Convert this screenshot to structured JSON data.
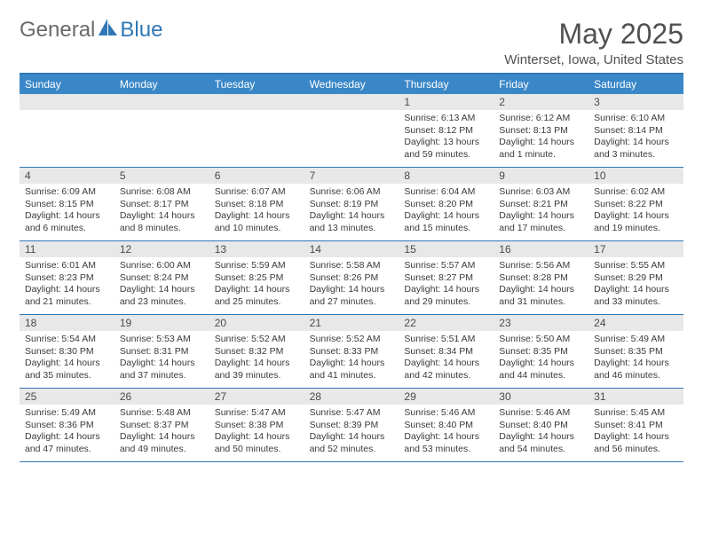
{
  "brand": {
    "part1": "General",
    "part2": "Blue"
  },
  "title": "May 2025",
  "location": "Winterset, Iowa, United States",
  "colors": {
    "header_bg": "#3a87c8",
    "rule": "#2f77b6",
    "daynum_bg": "#e8e8e8",
    "text": "#3a3a3a",
    "title_text": "#505050"
  },
  "weekdays": [
    "Sunday",
    "Monday",
    "Tuesday",
    "Wednesday",
    "Thursday",
    "Friday",
    "Saturday"
  ],
  "weeks": [
    [
      {
        "n": "",
        "sr": "",
        "ss": "",
        "dl": ""
      },
      {
        "n": "",
        "sr": "",
        "ss": "",
        "dl": ""
      },
      {
        "n": "",
        "sr": "",
        "ss": "",
        "dl": ""
      },
      {
        "n": "",
        "sr": "",
        "ss": "",
        "dl": ""
      },
      {
        "n": "1",
        "sr": "Sunrise: 6:13 AM",
        "ss": "Sunset: 8:12 PM",
        "dl": "Daylight: 13 hours and 59 minutes."
      },
      {
        "n": "2",
        "sr": "Sunrise: 6:12 AM",
        "ss": "Sunset: 8:13 PM",
        "dl": "Daylight: 14 hours and 1 minute."
      },
      {
        "n": "3",
        "sr": "Sunrise: 6:10 AM",
        "ss": "Sunset: 8:14 PM",
        "dl": "Daylight: 14 hours and 3 minutes."
      }
    ],
    [
      {
        "n": "4",
        "sr": "Sunrise: 6:09 AM",
        "ss": "Sunset: 8:15 PM",
        "dl": "Daylight: 14 hours and 6 minutes."
      },
      {
        "n": "5",
        "sr": "Sunrise: 6:08 AM",
        "ss": "Sunset: 8:17 PM",
        "dl": "Daylight: 14 hours and 8 minutes."
      },
      {
        "n": "6",
        "sr": "Sunrise: 6:07 AM",
        "ss": "Sunset: 8:18 PM",
        "dl": "Daylight: 14 hours and 10 minutes."
      },
      {
        "n": "7",
        "sr": "Sunrise: 6:06 AM",
        "ss": "Sunset: 8:19 PM",
        "dl": "Daylight: 14 hours and 13 minutes."
      },
      {
        "n": "8",
        "sr": "Sunrise: 6:04 AM",
        "ss": "Sunset: 8:20 PM",
        "dl": "Daylight: 14 hours and 15 minutes."
      },
      {
        "n": "9",
        "sr": "Sunrise: 6:03 AM",
        "ss": "Sunset: 8:21 PM",
        "dl": "Daylight: 14 hours and 17 minutes."
      },
      {
        "n": "10",
        "sr": "Sunrise: 6:02 AM",
        "ss": "Sunset: 8:22 PM",
        "dl": "Daylight: 14 hours and 19 minutes."
      }
    ],
    [
      {
        "n": "11",
        "sr": "Sunrise: 6:01 AM",
        "ss": "Sunset: 8:23 PM",
        "dl": "Daylight: 14 hours and 21 minutes."
      },
      {
        "n": "12",
        "sr": "Sunrise: 6:00 AM",
        "ss": "Sunset: 8:24 PM",
        "dl": "Daylight: 14 hours and 23 minutes."
      },
      {
        "n": "13",
        "sr": "Sunrise: 5:59 AM",
        "ss": "Sunset: 8:25 PM",
        "dl": "Daylight: 14 hours and 25 minutes."
      },
      {
        "n": "14",
        "sr": "Sunrise: 5:58 AM",
        "ss": "Sunset: 8:26 PM",
        "dl": "Daylight: 14 hours and 27 minutes."
      },
      {
        "n": "15",
        "sr": "Sunrise: 5:57 AM",
        "ss": "Sunset: 8:27 PM",
        "dl": "Daylight: 14 hours and 29 minutes."
      },
      {
        "n": "16",
        "sr": "Sunrise: 5:56 AM",
        "ss": "Sunset: 8:28 PM",
        "dl": "Daylight: 14 hours and 31 minutes."
      },
      {
        "n": "17",
        "sr": "Sunrise: 5:55 AM",
        "ss": "Sunset: 8:29 PM",
        "dl": "Daylight: 14 hours and 33 minutes."
      }
    ],
    [
      {
        "n": "18",
        "sr": "Sunrise: 5:54 AM",
        "ss": "Sunset: 8:30 PM",
        "dl": "Daylight: 14 hours and 35 minutes."
      },
      {
        "n": "19",
        "sr": "Sunrise: 5:53 AM",
        "ss": "Sunset: 8:31 PM",
        "dl": "Daylight: 14 hours and 37 minutes."
      },
      {
        "n": "20",
        "sr": "Sunrise: 5:52 AM",
        "ss": "Sunset: 8:32 PM",
        "dl": "Daylight: 14 hours and 39 minutes."
      },
      {
        "n": "21",
        "sr": "Sunrise: 5:52 AM",
        "ss": "Sunset: 8:33 PM",
        "dl": "Daylight: 14 hours and 41 minutes."
      },
      {
        "n": "22",
        "sr": "Sunrise: 5:51 AM",
        "ss": "Sunset: 8:34 PM",
        "dl": "Daylight: 14 hours and 42 minutes."
      },
      {
        "n": "23",
        "sr": "Sunrise: 5:50 AM",
        "ss": "Sunset: 8:35 PM",
        "dl": "Daylight: 14 hours and 44 minutes."
      },
      {
        "n": "24",
        "sr": "Sunrise: 5:49 AM",
        "ss": "Sunset: 8:35 PM",
        "dl": "Daylight: 14 hours and 46 minutes."
      }
    ],
    [
      {
        "n": "25",
        "sr": "Sunrise: 5:49 AM",
        "ss": "Sunset: 8:36 PM",
        "dl": "Daylight: 14 hours and 47 minutes."
      },
      {
        "n": "26",
        "sr": "Sunrise: 5:48 AM",
        "ss": "Sunset: 8:37 PM",
        "dl": "Daylight: 14 hours and 49 minutes."
      },
      {
        "n": "27",
        "sr": "Sunrise: 5:47 AM",
        "ss": "Sunset: 8:38 PM",
        "dl": "Daylight: 14 hours and 50 minutes."
      },
      {
        "n": "28",
        "sr": "Sunrise: 5:47 AM",
        "ss": "Sunset: 8:39 PM",
        "dl": "Daylight: 14 hours and 52 minutes."
      },
      {
        "n": "29",
        "sr": "Sunrise: 5:46 AM",
        "ss": "Sunset: 8:40 PM",
        "dl": "Daylight: 14 hours and 53 minutes."
      },
      {
        "n": "30",
        "sr": "Sunrise: 5:46 AM",
        "ss": "Sunset: 8:40 PM",
        "dl": "Daylight: 14 hours and 54 minutes."
      },
      {
        "n": "31",
        "sr": "Sunrise: 5:45 AM",
        "ss": "Sunset: 8:41 PM",
        "dl": "Daylight: 14 hours and 56 minutes."
      }
    ]
  ]
}
